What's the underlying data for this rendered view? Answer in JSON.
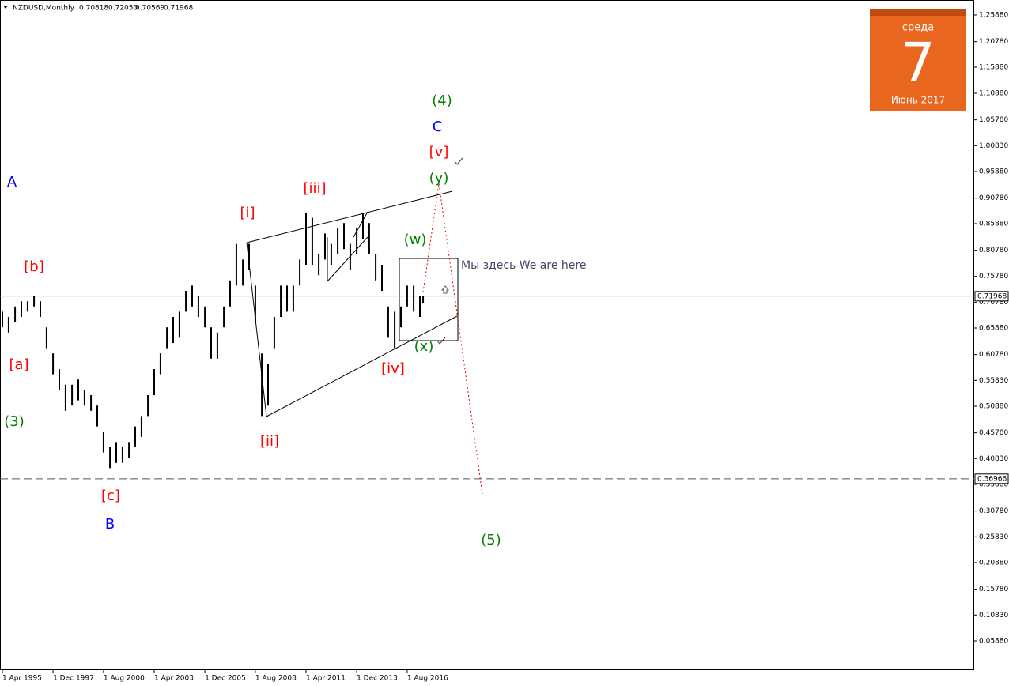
{
  "chart_data": {
    "type": "range",
    "symbol": "NZDUSD,Monthly",
    "quote": [
      "0.70818",
      "0.72050",
      "0.70569",
      "0.71968"
    ],
    "color": "#000000",
    "x": [
      1995.25,
      1995.58,
      1995.92,
      1996.25,
      1996.58,
      1996.92,
      1997.25,
      1997.58,
      1997.92,
      1998.25,
      1998.58,
      1998.92,
      1999.25,
      1999.58,
      1999.92,
      2000.25,
      2000.58,
      2000.92,
      2001.25,
      2001.58,
      2001.92,
      2002.25,
      2002.58,
      2002.92,
      2003.25,
      2003.58,
      2003.92,
      2004.25,
      2004.58,
      2004.92,
      2005.25,
      2005.58,
      2005.92,
      2006.25,
      2006.58,
      2006.92,
      2007.25,
      2007.58,
      2007.92,
      2008.25,
      2008.58,
      2008.92,
      2009.25,
      2009.58,
      2009.92,
      2010.25,
      2010.58,
      2010.92,
      2011.25,
      2011.58,
      2011.92,
      2012.25,
      2012.58,
      2012.92,
      2013.25,
      2013.58,
      2013.92,
      2014.25,
      2014.58,
      2014.92,
      2015.25,
      2015.58,
      2015.92,
      2016.25,
      2016.58,
      2016.92,
      2017.25,
      2017.42
    ],
    "low": [
      0.66,
      0.65,
      0.67,
      0.68,
      0.69,
      0.7,
      0.68,
      0.62,
      0.57,
      0.54,
      0.5,
      0.51,
      0.52,
      0.51,
      0.5,
      0.47,
      0.42,
      0.39,
      0.4,
      0.4,
      0.41,
      0.43,
      0.45,
      0.49,
      0.53,
      0.57,
      0.62,
      0.63,
      0.64,
      0.69,
      0.7,
      0.68,
      0.66,
      0.6,
      0.6,
      0.66,
      0.7,
      0.74,
      0.74,
      0.77,
      0.67,
      0.49,
      0.51,
      0.62,
      0.68,
      0.69,
      0.69,
      0.74,
      0.78,
      0.78,
      0.76,
      0.79,
      0.78,
      0.8,
      0.81,
      0.77,
      0.8,
      0.83,
      0.8,
      0.75,
      0.73,
      0.64,
      0.62,
      0.66,
      0.7,
      0.69,
      0.68,
      0.70569
    ],
    "high": [
      0.69,
      0.68,
      0.7,
      0.71,
      0.71,
      0.72,
      0.71,
      0.66,
      0.61,
      0.58,
      0.55,
      0.55,
      0.56,
      0.54,
      0.53,
      0.51,
      0.46,
      0.43,
      0.44,
      0.43,
      0.44,
      0.47,
      0.49,
      0.53,
      0.58,
      0.61,
      0.66,
      0.68,
      0.69,
      0.73,
      0.74,
      0.72,
      0.7,
      0.66,
      0.65,
      0.7,
      0.75,
      0.82,
      0.79,
      0.82,
      0.74,
      0.61,
      0.59,
      0.68,
      0.74,
      0.74,
      0.74,
      0.79,
      0.88,
      0.87,
      0.8,
      0.84,
      0.82,
      0.85,
      0.86,
      0.82,
      0.85,
      0.88,
      0.86,
      0.8,
      0.78,
      0.7,
      0.69,
      0.7,
      0.74,
      0.74,
      0.72,
      0.7205
    ],
    "xlim": [
      1995.125,
      2046.458
    ],
    "ylim": [
      0.0027,
      1.2876
    ],
    "xticks": [
      {
        "value": 1995.25,
        "label": "1 Apr 1995"
      },
      {
        "value": 1997.92,
        "label": "1 Dec 1997"
      },
      {
        "value": 2000.58,
        "label": "1 Aug 2000"
      },
      {
        "value": 2003.25,
        "label": "1 Apr 2003"
      },
      {
        "value": 2005.92,
        "label": "1 Dec 2005"
      },
      {
        "value": 2008.58,
        "label": "1 Aug 2008"
      },
      {
        "value": 2011.25,
        "label": "1 Apr 2011"
      },
      {
        "value": 2013.92,
        "label": "1 Dec 2013"
      },
      {
        "value": 2016.58,
        "label": "1 Aug 2016"
      }
    ],
    "yticks": [
      {
        "value": 1.2588,
        "label": "1.25880"
      },
      {
        "value": 1.2078,
        "label": "1.20780"
      },
      {
        "value": 1.1588,
        "label": "1.15880"
      },
      {
        "value": 1.1088,
        "label": "1.10880"
      },
      {
        "value": 1.0578,
        "label": "1.05780"
      },
      {
        "value": 1.0083,
        "label": "1.00830"
      },
      {
        "value": 0.9588,
        "label": "0.95880"
      },
      {
        "value": 0.9078,
        "label": "0.90780"
      },
      {
        "value": 0.8588,
        "label": "0.85880"
      },
      {
        "value": 0.8078,
        "label": "0.80780"
      },
      {
        "value": 0.7578,
        "label": "0.75780"
      },
      {
        "value": 0.7078,
        "label": "0.70780"
      },
      {
        "value": 0.6588,
        "label": "0.65880"
      },
      {
        "value": 0.6078,
        "label": "0.60780"
      },
      {
        "value": 0.5583,
        "label": "0.55830"
      },
      {
        "value": 0.5088,
        "label": "0.50880"
      },
      {
        "value": 0.4578,
        "label": "0.45780"
      },
      {
        "value": 0.4083,
        "label": "0.40830"
      },
      {
        "value": 0.3588,
        "label": "0.35880"
      },
      {
        "value": 0.3078,
        "label": "0.30780"
      },
      {
        "value": 0.2583,
        "label": "0.25830"
      },
      {
        "value": 0.2088,
        "label": "0.20880"
      },
      {
        "value": 0.1578,
        "label": "0.15780"
      },
      {
        "value": 0.1083,
        "label": "0.10830"
      },
      {
        "value": 0.0588,
        "label": "0.05880"
      }
    ],
    "hlines": [
      {
        "value": 0.71968,
        "dashed": false,
        "color": "#c0c0c0"
      },
      {
        "value": 0.36966,
        "dashed": true,
        "color": "#555555"
      }
    ],
    "annotations": [
      {
        "text": "A",
        "color": "#0000ff"
      },
      {
        "text": "[b]",
        "color": "#ff0000"
      },
      {
        "text": "[a]",
        "color": "#ff0000"
      },
      {
        "text": "(3)",
        "color": "#008000"
      },
      {
        "text": "[c]",
        "color": "#ff0000"
      },
      {
        "text": "B",
        "color": "#0000ff"
      },
      {
        "text": "[i]",
        "color": "#ff0000"
      },
      {
        "text": "[iii]",
        "color": "#ff0000"
      },
      {
        "text": "[ii]",
        "color": "#ff0000"
      },
      {
        "text": "[iv]",
        "color": "#ff0000"
      },
      {
        "text": "(w)",
        "color": "#008000"
      },
      {
        "text": "(x)",
        "color": "#008000"
      },
      {
        "text": "(y)",
        "color": "#008000"
      },
      {
        "text": "[v]",
        "color": "#ff0000"
      },
      {
        "text": "C",
        "color": "#0000ff"
      },
      {
        "text": "(4)",
        "color": "#008000"
      },
      {
        "text": "(5)",
        "color": "#008000"
      },
      {
        "text": "Мы здесь We are here",
        "color": "#444466"
      }
    ]
  },
  "calendar": {
    "weekday": "среда",
    "day": "7",
    "month": "Июнь 2017"
  }
}
